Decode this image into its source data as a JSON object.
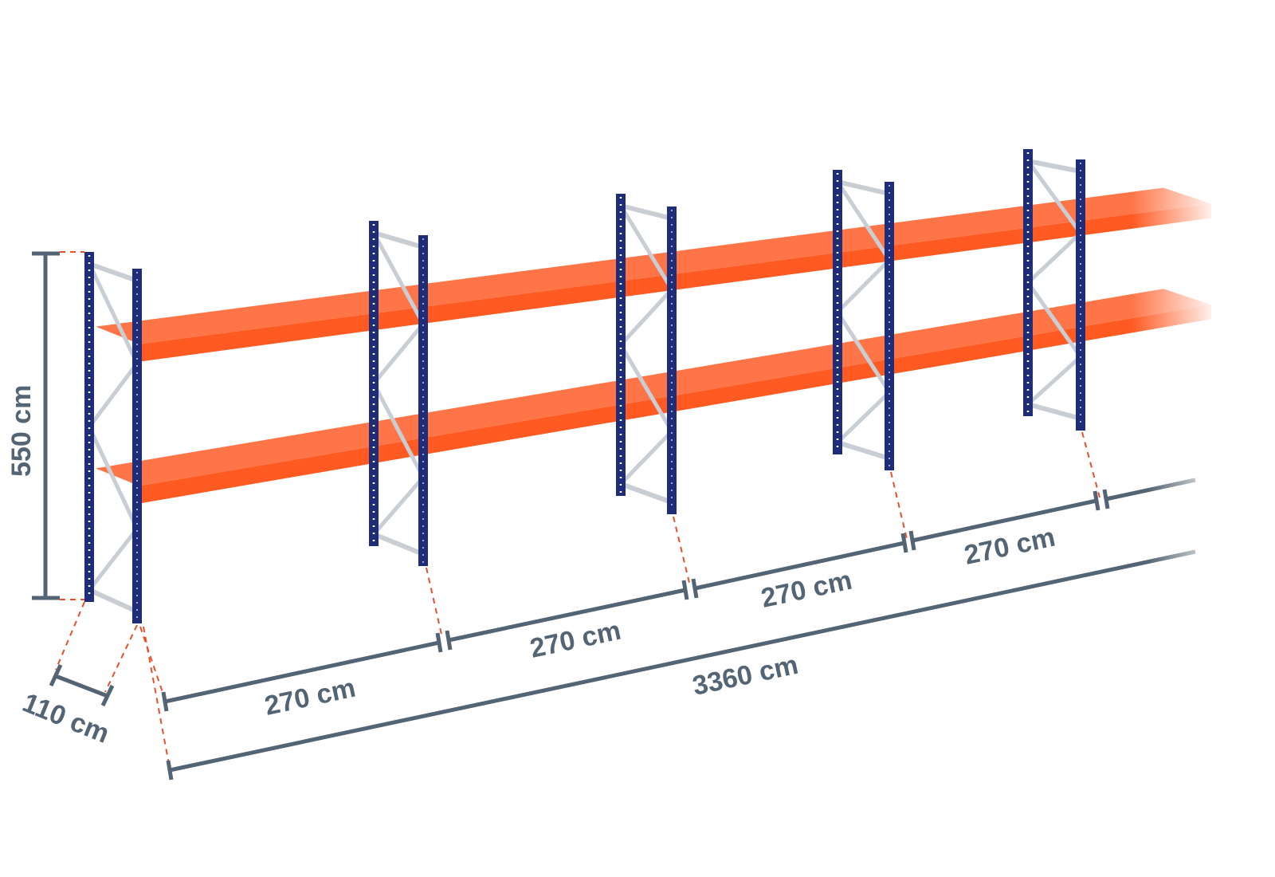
{
  "colors": {
    "dimension": "#536474",
    "upright": "#1f2d78",
    "beam": "#ff5a22",
    "beam_top": "#ff7548",
    "brace": "#c9ced4",
    "guide_dash": "#e8502a"
  },
  "dimensions": {
    "height": "550 cm",
    "depth": "110 cm",
    "bay_widths": [
      "270 cm",
      "270 cm",
      "270 cm",
      "270 cm"
    ],
    "total_length": "3360 cm"
  }
}
